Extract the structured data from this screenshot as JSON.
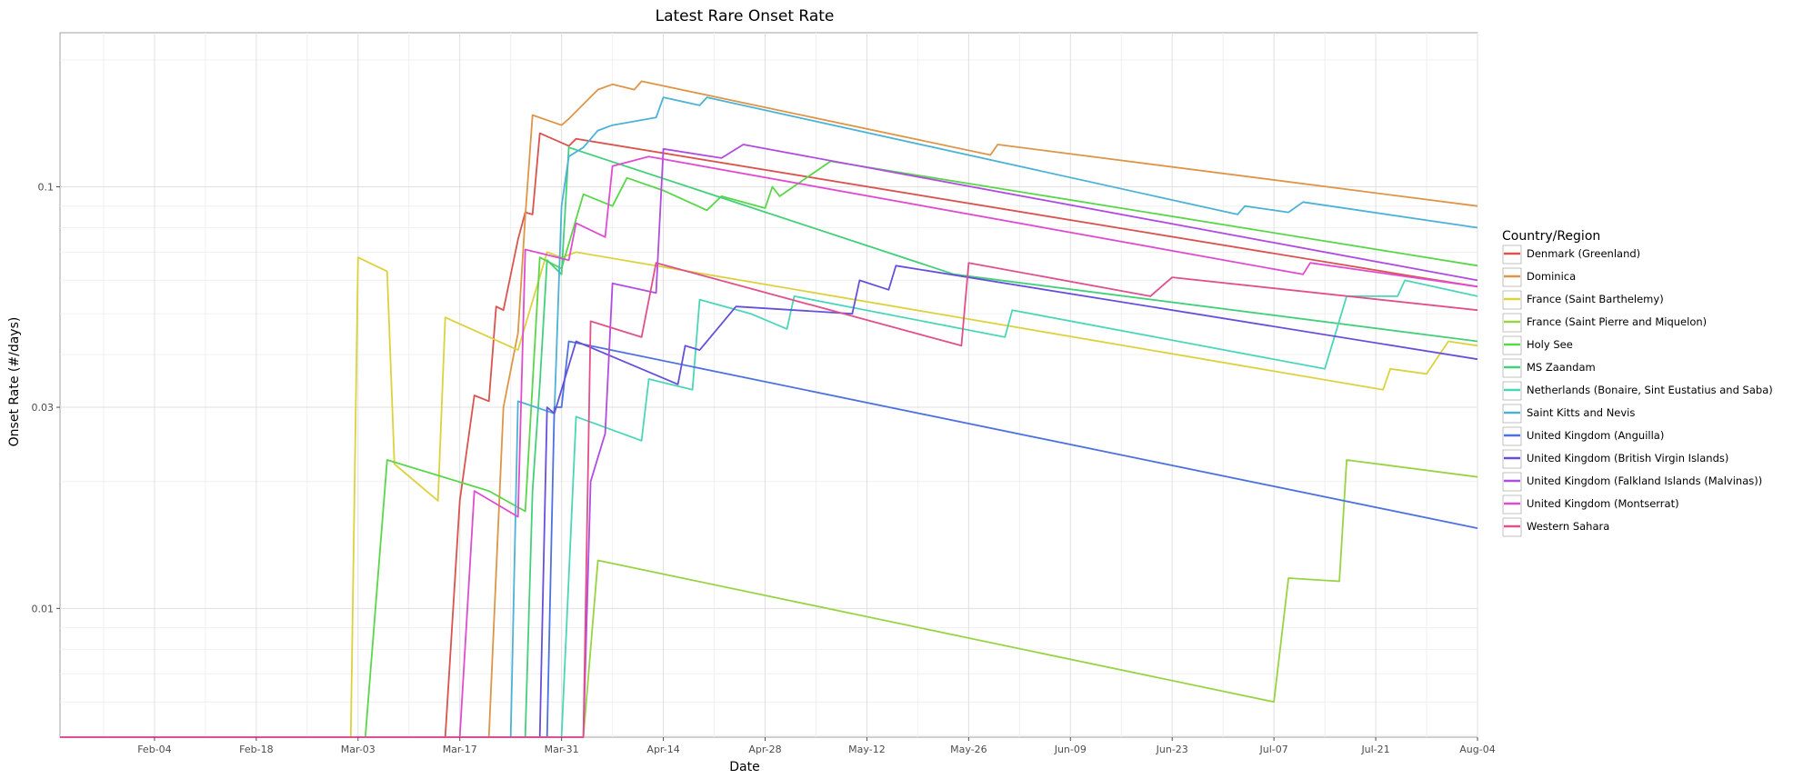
{
  "chart_data": {
    "type": "line",
    "title": "Latest Rare Onset Rate",
    "xlabel": "Date",
    "ylabel": "Onset Rate (#/days)",
    "x_scale": "date",
    "y_scale": "log",
    "xlim": [
      "2020-01-22",
      "2020-08-04"
    ],
    "ylim": [
      0.00495,
      0.232
    ],
    "x_tick_labels": [
      "Feb-04",
      "Feb-18",
      "Mar-03",
      "Mar-17",
      "Mar-31",
      "Apr-14",
      "Apr-28",
      "May-12",
      "May-26",
      "Jun-09",
      "Jun-23",
      "Jul-07",
      "Jul-21",
      "Aug-04"
    ],
    "x_tick_dates": [
      "2020-02-04",
      "2020-02-18",
      "2020-03-03",
      "2020-03-17",
      "2020-03-31",
      "2020-04-14",
      "2020-04-28",
      "2020-05-12",
      "2020-05-26",
      "2020-06-09",
      "2020-06-23",
      "2020-07-07",
      "2020-07-21",
      "2020-08-04"
    ],
    "y_tick_labels": [
      "0.01",
      "0.03",
      "0.1"
    ],
    "y_tick_values": [
      0.01,
      0.03,
      0.1
    ],
    "grid": true,
    "legend": {
      "title": "Country/Region",
      "position": "right"
    },
    "series": [
      {
        "name": "Denmark (Greenland)",
        "color": "#d9534f",
        "points": [
          [
            "2020-01-22",
            0.00495
          ],
          [
            "2020-03-15",
            0.00495
          ],
          [
            "2020-03-17",
            0.018
          ],
          [
            "2020-03-19",
            0.032
          ],
          [
            "2020-03-21",
            0.031
          ],
          [
            "2020-03-22",
            0.052
          ],
          [
            "2020-03-23",
            0.051
          ],
          [
            "2020-03-25",
            0.075
          ],
          [
            "2020-03-26",
            0.087
          ],
          [
            "2020-03-27",
            0.086
          ],
          [
            "2020-03-28",
            0.134
          ],
          [
            "2020-04-01",
            0.125
          ],
          [
            "2020-04-02",
            0.13
          ],
          [
            "2020-07-27",
            0.061
          ],
          [
            "2020-08-04",
            0.058
          ]
        ]
      },
      {
        "name": "Dominica",
        "color": "#dd9548",
        "points": [
          [
            "2020-01-22",
            0.00495
          ],
          [
            "2020-03-21",
            0.00495
          ],
          [
            "2020-03-23",
            0.03
          ],
          [
            "2020-03-25",
            0.045
          ],
          [
            "2020-03-26",
            0.085
          ],
          [
            "2020-03-27",
            0.148
          ],
          [
            "2020-03-31",
            0.14
          ],
          [
            "2020-04-01",
            0.145
          ],
          [
            "2020-04-05",
            0.17
          ],
          [
            "2020-04-07",
            0.175
          ],
          [
            "2020-04-10",
            0.17
          ],
          [
            "2020-04-11",
            0.178
          ],
          [
            "2020-05-29",
            0.119
          ],
          [
            "2020-05-30",
            0.126
          ],
          [
            "2020-08-04",
            0.09
          ]
        ]
      },
      {
        "name": "France (Saint Barthelemy)",
        "color": "#dcd23e",
        "points": [
          [
            "2020-01-22",
            0.00495
          ],
          [
            "2020-03-02",
            0.00495
          ],
          [
            "2020-03-03",
            0.068
          ],
          [
            "2020-03-07",
            0.063
          ],
          [
            "2020-03-08",
            0.022
          ],
          [
            "2020-03-14",
            0.018
          ],
          [
            "2020-03-15",
            0.049
          ],
          [
            "2020-03-25",
            0.041
          ],
          [
            "2020-03-29",
            0.07
          ],
          [
            "2020-03-31",
            0.068
          ],
          [
            "2020-04-02",
            0.07
          ],
          [
            "2020-07-22",
            0.033
          ],
          [
            "2020-07-23",
            0.037
          ],
          [
            "2020-07-28",
            0.036
          ],
          [
            "2020-07-31",
            0.043
          ],
          [
            "2020-08-04",
            0.042
          ]
        ]
      },
      {
        "name": "France (Saint Pierre and Miquelon)",
        "color": "#99d344",
        "points": [
          [
            "2020-01-22",
            0.00495
          ],
          [
            "2020-04-03",
            0.00495
          ],
          [
            "2020-04-05",
            0.013
          ],
          [
            "2020-07-07",
            0.006
          ],
          [
            "2020-07-09",
            0.0118
          ],
          [
            "2020-07-16",
            0.0116
          ],
          [
            "2020-07-17",
            0.0225
          ],
          [
            "2020-08-04",
            0.0205
          ]
        ]
      },
      {
        "name": "Holy See",
        "color": "#5ad64a",
        "points": [
          [
            "2020-01-22",
            0.00495
          ],
          [
            "2020-03-04",
            0.00495
          ],
          [
            "2020-03-07",
            0.0225
          ],
          [
            "2020-03-21",
            0.019
          ],
          [
            "2020-03-26",
            0.017
          ],
          [
            "2020-03-27",
            0.034
          ],
          [
            "2020-03-28",
            0.068
          ],
          [
            "2020-03-31",
            0.064
          ],
          [
            "2020-04-03",
            0.096
          ],
          [
            "2020-04-07",
            0.09
          ],
          [
            "2020-04-09",
            0.105
          ],
          [
            "2020-04-14",
            0.098
          ],
          [
            "2020-04-20",
            0.088
          ],
          [
            "2020-04-22",
            0.095
          ],
          [
            "2020-04-28",
            0.089
          ],
          [
            "2020-04-29",
            0.1
          ],
          [
            "2020-04-30",
            0.095
          ],
          [
            "2020-05-07",
            0.115
          ],
          [
            "2020-08-04",
            0.065
          ]
        ]
      },
      {
        "name": "MS Zaandam",
        "color": "#44d07a",
        "points": [
          [
            "2020-01-22",
            0.00495
          ],
          [
            "2020-03-26",
            0.00495
          ],
          [
            "2020-03-27",
            0.019
          ],
          [
            "2020-03-28",
            0.034
          ],
          [
            "2020-03-29",
            0.067
          ],
          [
            "2020-03-31",
            0.062
          ],
          [
            "2020-04-01",
            0.124
          ],
          [
            "2020-05-24",
            0.062
          ],
          [
            "2020-08-04",
            0.043
          ]
        ]
      },
      {
        "name": "Netherlands (Bonaire, Sint Eustatius and Saba)",
        "color": "#4cd6b9",
        "points": [
          [
            "2020-01-22",
            0.00495
          ],
          [
            "2020-03-31",
            0.00495
          ],
          [
            "2020-04-02",
            0.0285
          ],
          [
            "2020-04-11",
            0.025
          ],
          [
            "2020-04-12",
            0.035
          ],
          [
            "2020-04-18",
            0.033
          ],
          [
            "2020-04-19",
            0.054
          ],
          [
            "2020-04-26",
            0.05
          ],
          [
            "2020-05-01",
            0.046
          ],
          [
            "2020-05-02",
            0.055
          ],
          [
            "2020-05-31",
            0.044
          ],
          [
            "2020-06-01",
            0.051
          ],
          [
            "2020-07-14",
            0.037
          ],
          [
            "2020-07-17",
            0.055
          ],
          [
            "2020-07-24",
            0.055
          ],
          [
            "2020-07-25",
            0.06
          ],
          [
            "2020-08-04",
            0.055
          ]
        ]
      },
      {
        "name": "Saint Kitts and Nevis",
        "color": "#4cb2d6",
        "points": [
          [
            "2020-01-22",
            0.00495
          ],
          [
            "2020-03-24",
            0.00495
          ],
          [
            "2020-03-25",
            0.031
          ],
          [
            "2020-03-30",
            0.029
          ],
          [
            "2020-03-31",
            0.09
          ],
          [
            "2020-04-01",
            0.118
          ],
          [
            "2020-04-03",
            0.124
          ],
          [
            "2020-04-05",
            0.136
          ],
          [
            "2020-04-07",
            0.14
          ],
          [
            "2020-04-10",
            0.143
          ],
          [
            "2020-04-13",
            0.146
          ],
          [
            "2020-04-14",
            0.163
          ],
          [
            "2020-04-19",
            0.156
          ],
          [
            "2020-04-20",
            0.163
          ],
          [
            "2020-07-02",
            0.086
          ],
          [
            "2020-07-03",
            0.09
          ],
          [
            "2020-07-09",
            0.087
          ],
          [
            "2020-07-11",
            0.092
          ],
          [
            "2020-08-04",
            0.08
          ]
        ]
      },
      {
        "name": "United Kingdom (Anguilla)",
        "color": "#4d72e0",
        "points": [
          [
            "2020-01-22",
            0.00495
          ],
          [
            "2020-03-29",
            0.00495
          ],
          [
            "2020-03-30",
            0.03
          ],
          [
            "2020-03-31",
            0.03
          ],
          [
            "2020-04-01",
            0.043
          ],
          [
            "2020-08-04",
            0.0155
          ]
        ]
      },
      {
        "name": "United Kingdom (British Virgin Islands)",
        "color": "#6650db",
        "points": [
          [
            "2020-01-22",
            0.00495
          ],
          [
            "2020-03-28",
            0.00495
          ],
          [
            "2020-03-29",
            0.03
          ],
          [
            "2020-03-30",
            0.029
          ],
          [
            "2020-04-02",
            0.043
          ],
          [
            "2020-04-16",
            0.034
          ],
          [
            "2020-04-17",
            0.042
          ],
          [
            "2020-04-19",
            0.041
          ],
          [
            "2020-04-24",
            0.052
          ],
          [
            "2020-05-10",
            0.05
          ],
          [
            "2020-05-11",
            0.06
          ],
          [
            "2020-05-15",
            0.057
          ],
          [
            "2020-05-16",
            0.065
          ],
          [
            "2020-08-04",
            0.039
          ]
        ]
      },
      {
        "name": "United Kingdom (Falkland Islands (Malvinas))",
        "color": "#b04de0",
        "points": [
          [
            "2020-01-22",
            0.00495
          ],
          [
            "2020-04-03",
            0.00495
          ],
          [
            "2020-04-04",
            0.02
          ],
          [
            "2020-04-06",
            0.026
          ],
          [
            "2020-04-07",
            0.059
          ],
          [
            "2020-04-13",
            0.056
          ],
          [
            "2020-04-14",
            0.123
          ],
          [
            "2020-04-22",
            0.117
          ],
          [
            "2020-04-25",
            0.126
          ],
          [
            "2020-08-04",
            0.06
          ]
        ]
      },
      {
        "name": "United Kingdom (Montserrat)",
        "color": "#e04cd0",
        "points": [
          [
            "2020-01-22",
            0.00495
          ],
          [
            "2020-03-17",
            0.00495
          ],
          [
            "2020-03-19",
            0.019
          ],
          [
            "2020-03-25",
            0.0165
          ],
          [
            "2020-03-26",
            0.071
          ],
          [
            "2020-04-01",
            0.067
          ],
          [
            "2020-04-02",
            0.082
          ],
          [
            "2020-04-06",
            0.076
          ],
          [
            "2020-04-07",
            0.112
          ],
          [
            "2020-04-12",
            0.118
          ],
          [
            "2020-07-11",
            0.062
          ],
          [
            "2020-07-12",
            0.066
          ],
          [
            "2020-08-04",
            0.058
          ]
        ]
      },
      {
        "name": "Western Sahara",
        "color": "#e0508a",
        "points": [
          [
            "2020-01-22",
            0.00495
          ],
          [
            "2020-04-03",
            0.00495
          ],
          [
            "2020-04-04",
            0.048
          ],
          [
            "2020-04-11",
            0.044
          ],
          [
            "2020-04-13",
            0.066
          ],
          [
            "2020-05-25",
            0.042
          ],
          [
            "2020-05-26",
            0.066
          ],
          [
            "2020-06-20",
            0.055
          ],
          [
            "2020-06-23",
            0.061
          ],
          [
            "2020-08-04",
            0.051
          ]
        ]
      }
    ]
  }
}
